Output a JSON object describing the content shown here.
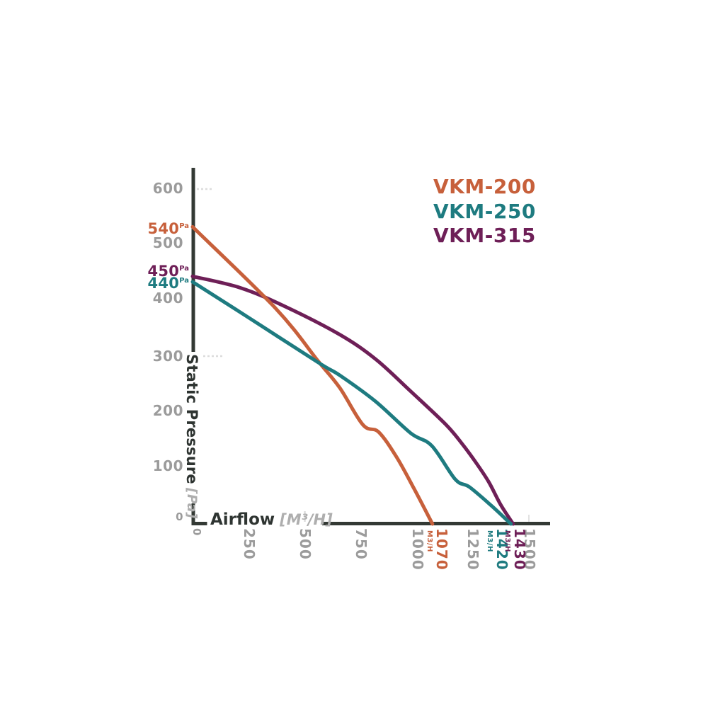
{
  "legend": {
    "items": [
      {
        "label": "VKM-200",
        "color": "#C7603B"
      },
      {
        "label": "VKM-250",
        "color": "#1E7B80"
      },
      {
        "label": "VKM-315",
        "color": "#6E1F57"
      }
    ]
  },
  "y_axis": {
    "title": "Static Pressure",
    "unit": "[Pa]",
    "ticks": [
      "600",
      "500",
      "400",
      "300",
      "200",
      "100",
      "0"
    ],
    "marks": [
      {
        "value": "540",
        "unit": "Pa",
        "series": "VKM-200",
        "color": "#C7603B"
      },
      {
        "value": "450",
        "unit": "Pa",
        "series": "VKM-315",
        "color": "#6E1F57"
      },
      {
        "value": "440",
        "unit": "Pa",
        "series": "VKM-250",
        "color": "#1E7B80"
      }
    ]
  },
  "x_axis": {
    "title": "Airflow",
    "unit": "[M³/H]",
    "ticks": [
      "0",
      "250",
      "500",
      "750",
      "1000",
      "1250",
      "1500"
    ],
    "marks": [
      {
        "value": "1070",
        "unit": "M3/H",
        "series": "VKM-200",
        "color": "#C7603B"
      },
      {
        "value": "1420",
        "unit": "M3/H",
        "series": "VKM-250",
        "color": "#1E7B80"
      },
      {
        "value": "1430",
        "unit": "M3/H",
        "series": "VKM-315",
        "color": "#6E1F57"
      }
    ]
  },
  "chart_data": {
    "type": "line",
    "title": "",
    "xlabel": "Airflow [M³/H]",
    "ylabel": "Static Pressure [Pa]",
    "xlim": [
      0,
      1500
    ],
    "ylim": [
      0,
      640
    ],
    "grid": false,
    "legend_position": "top-right",
    "series": [
      {
        "name": "VKM-200",
        "color": "#C7603B",
        "max_static_pressure_pa": 540,
        "max_airflow_m3h": 1070,
        "points": [
          [
            0,
            540
          ],
          [
            370,
            392
          ],
          [
            560,
            296
          ],
          [
            657,
            247
          ],
          [
            760,
            180
          ],
          [
            830,
            167
          ],
          [
            909,
            122
          ],
          [
            988,
            64
          ],
          [
            1070,
            0
          ]
        ]
      },
      {
        "name": "VKM-250",
        "color": "#1E7B80",
        "max_static_pressure_pa": 440,
        "max_airflow_m3h": 1420,
        "points": [
          [
            0,
            440
          ],
          [
            246,
            376
          ],
          [
            562,
            293
          ],
          [
            657,
            270
          ],
          [
            815,
            223
          ],
          [
            973,
            165
          ],
          [
            1067,
            142
          ],
          [
            1172,
            81
          ],
          [
            1235,
            67
          ],
          [
            1336,
            32
          ],
          [
            1420,
            0
          ]
        ]
      },
      {
        "name": "VKM-315",
        "color": "#6E1F57",
        "max_static_pressure_pa": 450,
        "max_airflow_m3h": 1430,
        "points": [
          [
            0,
            450
          ],
          [
            215,
            429
          ],
          [
            414,
            395
          ],
          [
            657,
            344
          ],
          [
            815,
            300
          ],
          [
            973,
            241
          ],
          [
            1131,
            180
          ],
          [
            1209,
            142
          ],
          [
            1263,
            112
          ],
          [
            1320,
            77
          ],
          [
            1374,
            35
          ],
          [
            1430,
            0
          ]
        ]
      }
    ]
  }
}
